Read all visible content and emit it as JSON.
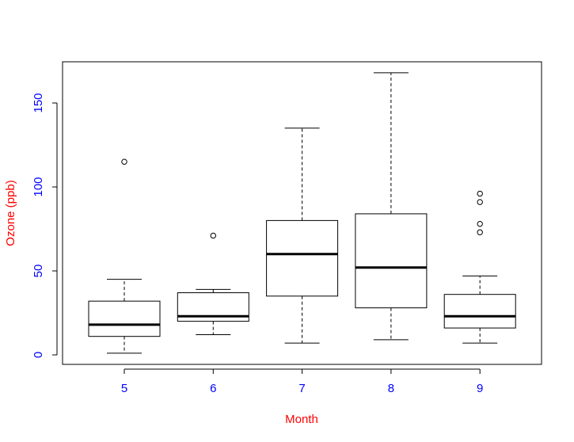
{
  "chart_data": {
    "type": "boxplot",
    "title": "",
    "xlabel": "Month",
    "ylabel": "Ozone (ppb)",
    "categories": [
      "5",
      "6",
      "7",
      "8",
      "9"
    ],
    "ylim": [
      0,
      170
    ],
    "yticks": [
      0,
      50,
      100,
      150
    ],
    "grid": false,
    "colors": {
      "tick_labels": "#0000ff",
      "axis_titles": "#ff0000",
      "boxes": "#000000"
    },
    "boxes": [
      {
        "category": "5",
        "min": 1,
        "q1": 11,
        "median": 18,
        "q3": 32,
        "max": 45,
        "outliers": [
          115
        ]
      },
      {
        "category": "6",
        "min": 12,
        "q1": 20,
        "median": 23,
        "q3": 37,
        "max": 39,
        "outliers": [
          71
        ]
      },
      {
        "category": "7",
        "min": 7,
        "q1": 35,
        "median": 60,
        "q3": 80,
        "max": 135,
        "outliers": []
      },
      {
        "category": "8",
        "min": 9,
        "q1": 28,
        "median": 52,
        "q3": 84,
        "max": 168,
        "outliers": []
      },
      {
        "category": "9",
        "min": 7,
        "q1": 16,
        "median": 23,
        "q3": 36,
        "max": 47,
        "outliers": [
          73,
          78,
          91,
          96
        ]
      }
    ]
  }
}
